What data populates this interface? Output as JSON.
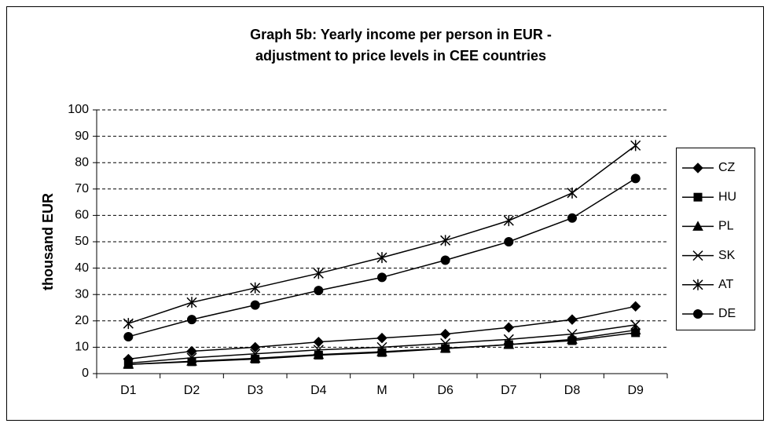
{
  "chart_data": {
    "type": "line",
    "title": [
      "Graph 5b: Yearly income per person in EUR -",
      "adjustment to price levels in CEE countries"
    ],
    "y_label": "thousand EUR",
    "categories": [
      "D1",
      "D2",
      "D3",
      "D4",
      "M",
      "D6",
      "D7",
      "D8",
      "D9"
    ],
    "series": [
      {
        "name": "CZ",
        "color": "#000000",
        "marker": "diamond",
        "values": [
          5.5,
          8.5,
          10,
          12,
          13.5,
          15,
          17.5,
          20.5,
          25.5
        ]
      },
      {
        "name": "HU",
        "color": "#000000",
        "marker": "square",
        "values": [
          3.5,
          4.5,
          5.5,
          7,
          8,
          9.5,
          11,
          12.5,
          15.5
        ]
      },
      {
        "name": "PL",
        "color": "#000000",
        "marker": "triangle",
        "values": [
          3.5,
          4.7,
          5.8,
          7.2,
          8.3,
          9.6,
          11,
          13,
          16.5
        ]
      },
      {
        "name": "SK",
        "color": "#000000",
        "marker": "x",
        "values": [
          4,
          6,
          7.5,
          9,
          10,
          11.5,
          13,
          15,
          18.5
        ]
      },
      {
        "name": "AT",
        "color": "#000000",
        "marker": "star",
        "values": [
          19,
          27,
          32.5,
          38,
          44,
          50.5,
          58,
          68.5,
          86.5
        ]
      },
      {
        "name": "DE",
        "color": "#000000",
        "marker": "circle",
        "values": [
          14,
          20.5,
          26,
          31.5,
          36.5,
          43,
          50,
          59,
          74
        ]
      }
    ],
    "ylim": [
      0,
      100
    ],
    "yticks": [
      0,
      10,
      20,
      30,
      40,
      50,
      60,
      70,
      80,
      90,
      100
    ],
    "grid": true,
    "legend": "right"
  }
}
